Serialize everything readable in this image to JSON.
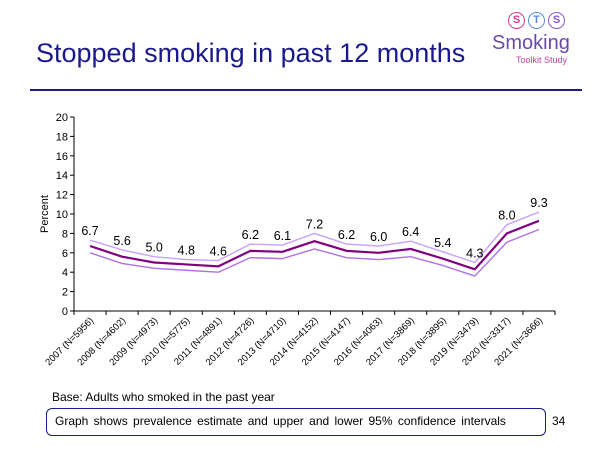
{
  "slide": {
    "title": "Stopped smoking in past 12 months",
    "base_note": "Base: Adults who smoked in the past year",
    "ci_note": "Graph shows prevalence estimate and upper and lower 95% confidence intervals",
    "page_number": "34"
  },
  "logo": {
    "letters": [
      "S",
      "T",
      "S"
    ],
    "name": "Smoking",
    "subtitle": "Toolkit Study"
  },
  "colors": {
    "title": "#1a1a8c",
    "main_line": "#800080",
    "ci_upper": "#c8a0ff",
    "ci_lower": "#b070e8"
  },
  "chart_data": {
    "type": "line",
    "title": "",
    "xlabel": "",
    "ylabel": "Percent",
    "ylim": [
      0,
      20
    ],
    "yticks": [
      0,
      2,
      4,
      6,
      8,
      10,
      12,
      14,
      16,
      18,
      20
    ],
    "categories": [
      "2007 (N=5956)",
      "2008 (N=4602)",
      "2009 (N=4973)",
      "2010 (N=5775)",
      "2011 (N=4891)",
      "2012 (N=4726)",
      "2013 (N=4710)",
      "2014 (N=4152)",
      "2015 (N=4147)",
      "2016 (N=4063)",
      "2017 (N=3869)",
      "2018 (N=3895)",
      "2019 (N=3479)",
      "2020 (N=3317)",
      "2021 (N=3666)"
    ],
    "series": [
      {
        "name": "Estimate",
        "values": [
          6.7,
          5.6,
          5.0,
          4.8,
          4.6,
          6.2,
          6.1,
          7.2,
          6.2,
          6.0,
          6.4,
          5.4,
          4.3,
          8.0,
          9.3
        ],
        "labels": [
          "6.7",
          "5.6",
          "5.0",
          "4.8",
          "4.6",
          "6.2",
          "6.1",
          "7.2",
          "6.2",
          "6.0",
          "6.4",
          "5.4",
          "4.3",
          "8.0",
          "9.3"
        ]
      },
      {
        "name": "Upper 95% CI",
        "values": [
          7.3,
          6.3,
          5.6,
          5.3,
          5.2,
          6.9,
          6.8,
          8.0,
          6.9,
          6.7,
          7.2,
          6.1,
          5.0,
          8.9,
          10.2
        ]
      },
      {
        "name": "Lower 95% CI",
        "values": [
          6.0,
          4.9,
          4.4,
          4.2,
          4.0,
          5.5,
          5.4,
          6.4,
          5.5,
          5.3,
          5.6,
          4.7,
          3.6,
          7.1,
          8.4
        ]
      }
    ],
    "grid": false,
    "legend": "none"
  }
}
